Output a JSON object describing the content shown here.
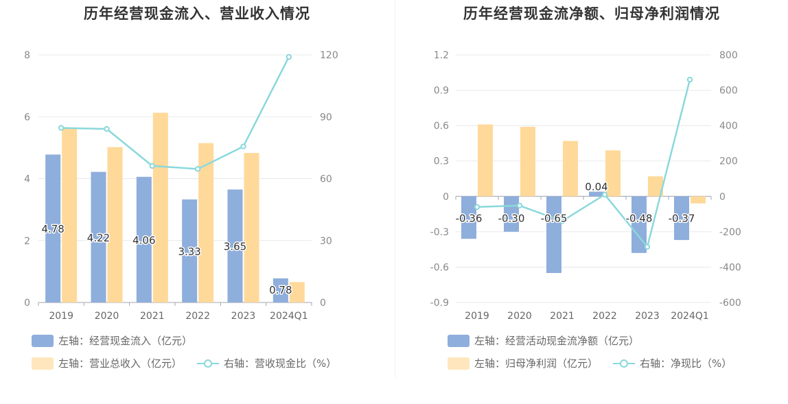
{
  "chart_data": [
    {
      "type": "bar",
      "title": "历年经营现金流入、营业收入情况",
      "categories": [
        "2019",
        "2020",
        "2021",
        "2022",
        "2023",
        "2024Q1"
      ],
      "series": [
        {
          "name": "左轴：经营现金流入（亿元）",
          "axis": "left",
          "kind": "bar",
          "color": "#8eaedc",
          "values": [
            4.78,
            4.22,
            4.06,
            3.33,
            3.65,
            0.78
          ],
          "labels": [
            "4.78",
            "4.22",
            "4.06",
            "3.33",
            "3.65",
            "0.78"
          ]
        },
        {
          "name": "左轴：营业总收入（亿元）",
          "axis": "left",
          "kind": "bar",
          "color": "#ffd99a",
          "values": [
            5.65,
            5.02,
            6.13,
            5.15,
            4.83,
            0.66
          ]
        },
        {
          "name": "右轴：营收现金比（%）",
          "axis": "right",
          "kind": "line",
          "color": "#8ad8db",
          "values": [
            84.6,
            84.1,
            66.2,
            64.7,
            75.6,
            119.0
          ]
        }
      ],
      "yleft": {
        "min": 0,
        "max": 8,
        "ticks": [
          "0",
          "2",
          "4",
          "6",
          "8"
        ]
      },
      "yright": {
        "min": 0,
        "max": 120,
        "ticks": [
          "0",
          "30",
          "60",
          "90",
          "120"
        ]
      },
      "legend": "bottom"
    },
    {
      "type": "bar",
      "title": "历年经营现金流净额、归母净利润情况",
      "categories": [
        "2019",
        "2020",
        "2021",
        "2022",
        "2023",
        "2024Q1"
      ],
      "series": [
        {
          "name": "左轴：经营活动现金流净额（亿元）",
          "axis": "left",
          "kind": "bar",
          "color": "#8eaedc",
          "values": [
            -0.36,
            -0.3,
            -0.65,
            0.04,
            -0.48,
            -0.37
          ],
          "labels": [
            "-0.36",
            "-0.30",
            "-0.65",
            "0.04",
            "-0.48",
            "-0.37"
          ]
        },
        {
          "name": "左轴：归母净利润（亿元）",
          "axis": "left",
          "kind": "bar",
          "color": "#ffd99a",
          "values": [
            0.61,
            0.59,
            0.47,
            0.39,
            0.17,
            -0.06
          ]
        },
        {
          "name": "右轴：净现比（%）",
          "axis": "right",
          "kind": "line",
          "color": "#8ad8db",
          "values": [
            -60,
            -52,
            -140,
            10,
            -285,
            660
          ]
        }
      ],
      "yleft": {
        "min": -0.9,
        "max": 1.2,
        "ticks": [
          "-0.9",
          "-0.6",
          "-0.3",
          "0",
          "0.3",
          "0.6",
          "0.9",
          "1.2"
        ]
      },
      "yright": {
        "min": -600,
        "max": 800,
        "ticks": [
          "-600",
          "-400",
          "-200",
          "0",
          "200",
          "400",
          "600",
          "800"
        ]
      },
      "legend": "bottom"
    }
  ]
}
